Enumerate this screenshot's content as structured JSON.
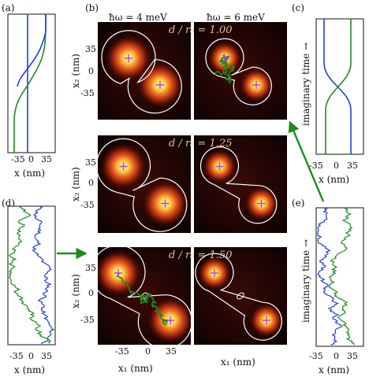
{
  "panel_labels": {
    "a": "(a)",
    "b": "(b)",
    "c": "(c)",
    "d": "(d)",
    "e": "(e)"
  },
  "column_headers": [
    "ħω = 4 meV",
    "ħω = 6 meV"
  ],
  "row_annotations": [
    "d / r₀ = 1.00",
    "d / r₀ = 1.25",
    "d / r₀ = 1.50"
  ],
  "axes": {
    "x1_label": "x₁ (nm)",
    "x2_label": "x₂ (nm)",
    "x_label": "x (nm)",
    "imag_time_label": "imaginary time →",
    "ticks": [
      "-35",
      "0",
      "35"
    ]
  },
  "colors": {
    "path_blue": "#1f3fe0",
    "path_green": "#1f8a1f",
    "heat_core": "#fff6b0",
    "heat_mid": "#e05a12",
    "heat_bg": "#140404",
    "marker": "#b040d8",
    "contour": "#ffffff"
  },
  "chart_data": [
    {
      "type": "line",
      "panel": "(a)",
      "description": "imaginary-time path, two particles",
      "xlabel": "x (nm)",
      "xlim": [
        -50,
        50
      ],
      "series": [
        {
          "color": "blue"
        },
        {
          "color": "green"
        }
      ]
    },
    {
      "type": "heatmap",
      "panel": "(b)",
      "xlabel": "x₁ (nm)",
      "ylabel": "x₂ (nm)",
      "xlim": [
        -55,
        55
      ],
      "ylim": [
        -55,
        55
      ],
      "columns": [
        "ħω = 4 meV",
        "ħω = 6 meV"
      ],
      "rows": [
        "d / r₀ = 1.00",
        "d / r₀ = 1.25",
        "d / r₀ = 1.50"
      ],
      "peaks": [
        [
          -15,
          15
        ],
        [
          20,
          -20
        ]
      ]
    },
    {
      "type": "line",
      "panel": "(c)",
      "xlabel": "x (nm)",
      "xlim": [
        -50,
        50
      ],
      "series": [
        {
          "color": "blue"
        },
        {
          "color": "green"
        }
      ]
    },
    {
      "type": "line",
      "panel": "(d)",
      "xlabel": "x (nm)",
      "xlim": [
        -50,
        50
      ],
      "series": [
        {
          "color": "blue"
        },
        {
          "color": "green"
        }
      ]
    },
    {
      "type": "line",
      "panel": "(e)",
      "xlabel": "x (nm)",
      "xlim": [
        -50,
        50
      ],
      "series": [
        {
          "color": "blue"
        },
        {
          "color": "green"
        }
      ]
    }
  ]
}
